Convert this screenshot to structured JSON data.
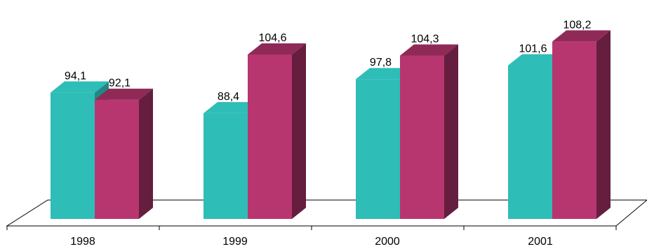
{
  "chart_data": {
    "type": "bar",
    "style": "3d-clustered-column",
    "categories": [
      "1998",
      "1999",
      "2000",
      "2001"
    ],
    "series": [
      {
        "values": [
          94.1,
          88.4,
          97.8,
          101.6
        ],
        "value_labels": [
          "94,1",
          "88,4",
          "97,8",
          "101,6"
        ],
        "color": "#2fbdb7"
      },
      {
        "values": [
          92.1,
          104.6,
          104.3,
          108.2
        ],
        "value_labels": [
          "92,1",
          "104,6",
          "104,3",
          "108,2"
        ],
        "color": "#b73670"
      }
    ],
    "ylim": [
      60,
      110
    ],
    "grid": false,
    "legend": "none"
  }
}
